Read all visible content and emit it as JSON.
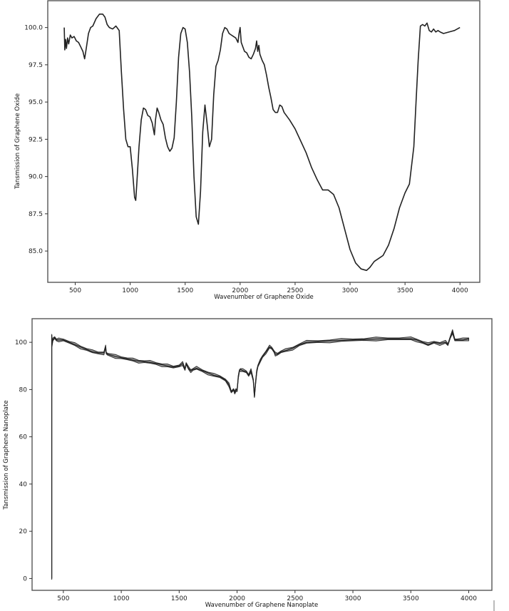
{
  "chart_data": [
    {
      "type": "line",
      "title": "",
      "xlabel": "Wavenumber of Graphene Oxide",
      "ylabel": "Tansmission of Graphene Oxide",
      "xlim": [
        250,
        4180
      ],
      "ylim": [
        82.9,
        101.8
      ],
      "grid": false,
      "legend": null,
      "xticks": [
        500,
        1000,
        1500,
        2000,
        2500,
        3000,
        3500,
        4000
      ],
      "yticks": [
        85.0,
        87.5,
        90.0,
        92.5,
        95.0,
        97.5,
        100.0
      ],
      "ytick_labels": [
        "85.0",
        "87.5",
        "90.0",
        "92.5",
        "95.0",
        "97.5",
        "100.0"
      ],
      "series": [
        {
          "name": "Graphene Oxide",
          "x": [
            400,
            405,
            412,
            420,
            430,
            440,
            455,
            470,
            490,
            510,
            530,
            550,
            570,
            585,
            600,
            620,
            640,
            660,
            690,
            720,
            750,
            770,
            790,
            810,
            840,
            870,
            900,
            920,
            940,
            960,
            980,
            1000,
            1020,
            1040,
            1050,
            1060,
            1080,
            1100,
            1120,
            1140,
            1160,
            1180,
            1200,
            1220,
            1230,
            1245,
            1260,
            1280,
            1300,
            1320,
            1340,
            1360,
            1380,
            1400,
            1420,
            1440,
            1460,
            1480,
            1500,
            1520,
            1540,
            1560,
            1580,
            1600,
            1620,
            1640,
            1660,
            1680,
            1700,
            1720,
            1740,
            1760,
            1780,
            1800,
            1820,
            1840,
            1860,
            1880,
            1900,
            1920,
            1940,
            1960,
            1980,
            1990,
            2000,
            2010,
            2020,
            2040,
            2060,
            2080,
            2100,
            2120,
            2140,
            2150,
            2160,
            2170,
            2180,
            2200,
            2220,
            2240,
            2260,
            2280,
            2300,
            2320,
            2340,
            2360,
            2380,
            2400,
            2450,
            2500,
            2550,
            2600,
            2650,
            2700,
            2750,
            2800,
            2850,
            2900,
            2950,
            3000,
            3050,
            3100,
            3150,
            3180,
            3220,
            3260,
            3300,
            3350,
            3400,
            3450,
            3500,
            3540,
            3580,
            3600,
            3620,
            3640,
            3660,
            3680,
            3700,
            3720,
            3740,
            3760,
            3780,
            3800,
            3820,
            3850,
            3900,
            3950,
            4000
          ],
          "y": [
            100.0,
            98.5,
            99.2,
            98.6,
            99.3,
            98.9,
            99.5,
            99.3,
            99.4,
            99.1,
            99.0,
            98.7,
            98.4,
            97.9,
            98.6,
            99.6,
            100.0,
            100.1,
            100.6,
            100.9,
            100.9,
            100.7,
            100.2,
            100.0,
            99.9,
            100.1,
            99.8,
            97.0,
            94.5,
            92.5,
            92.0,
            92.0,
            90.5,
            88.6,
            88.4,
            89.5,
            92.0,
            93.8,
            94.6,
            94.5,
            94.1,
            94.0,
            93.6,
            92.8,
            93.8,
            94.6,
            94.3,
            93.8,
            93.5,
            92.6,
            92.0,
            91.7,
            91.9,
            92.6,
            95.0,
            98.0,
            99.6,
            100.0,
            99.9,
            99.0,
            97.0,
            94.0,
            90.0,
            87.3,
            86.8,
            89.0,
            93.0,
            94.8,
            93.5,
            92.0,
            92.5,
            95.5,
            97.4,
            97.8,
            98.5,
            99.6,
            100.0,
            99.9,
            99.6,
            99.5,
            99.4,
            99.3,
            99.0,
            99.6,
            100.0,
            99.0,
            98.8,
            98.4,
            98.3,
            98.0,
            97.9,
            98.2,
            98.6,
            99.1,
            98.4,
            98.8,
            98.2,
            97.8,
            97.5,
            96.8,
            96.0,
            95.3,
            94.5,
            94.3,
            94.3,
            94.8,
            94.7,
            94.3,
            93.8,
            93.2,
            92.4,
            91.6,
            90.6,
            89.8,
            89.1,
            89.1,
            88.8,
            87.9,
            86.5,
            85.1,
            84.2,
            83.8,
            83.7,
            83.9,
            84.3,
            84.5,
            84.7,
            85.4,
            86.5,
            87.9,
            88.9,
            89.5,
            92.0,
            95.0,
            97.8,
            100.1,
            100.2,
            100.1,
            100.3,
            99.8,
            99.7,
            99.9,
            99.7,
            99.8,
            99.7,
            99.6,
            99.7,
            99.8,
            100.0
          ]
        }
      ]
    },
    {
      "type": "area",
      "title": "",
      "xlabel": "Wavenumber of Graphene Nanoplate",
      "ylabel": "Tansmission of Graphene Nanoplate",
      "xlim": [
        230,
        4200
      ],
      "ylim": [
        -5,
        110
      ],
      "grid": false,
      "legend": null,
      "xticks": [
        500,
        1000,
        1500,
        2000,
        2500,
        3000,
        3500,
        4000
      ],
      "yticks": [
        0,
        20,
        40,
        60,
        80,
        100
      ],
      "ytick_labels": [
        "0",
        "20",
        "40",
        "60",
        "80",
        "100"
      ],
      "series": [
        {
          "name": "Graphene Nanoplate",
          "x": [
            400,
            400,
            402,
            410,
            425,
            440,
            460,
            500,
            550,
            600,
            650,
            700,
            750,
            800,
            850,
            865,
            870,
            880,
            950,
            1000,
            1050,
            1100,
            1150,
            1200,
            1250,
            1300,
            1350,
            1400,
            1450,
            1500,
            1530,
            1550,
            1560,
            1580,
            1600,
            1620,
            1650,
            1700,
            1750,
            1800,
            1850,
            1900,
            1930,
            1950,
            1970,
            1980,
            1990,
            2000,
            2010,
            2020,
            2030,
            2050,
            2080,
            2100,
            2120,
            2140,
            2150,
            2160,
            2170,
            2180,
            2200,
            2220,
            2250,
            2280,
            2300,
            2320,
            2330,
            2350,
            2380,
            2420,
            2480,
            2540,
            2600,
            2700,
            2800,
            2900,
            3000,
            3100,
            3200,
            3300,
            3400,
            3500,
            3550,
            3600,
            3650,
            3700,
            3750,
            3800,
            3820,
            3840,
            3860,
            3880,
            3900,
            3950,
            4000
          ],
          "y": [
            0,
            103,
            99,
            101,
            102,
            101,
            101,
            101,
            100,
            99,
            98,
            97,
            96,
            95.5,
            95.5,
            98,
            95.5,
            95,
            94,
            93.5,
            93,
            92.5,
            92,
            91.8,
            91.5,
            91,
            90.5,
            90,
            89.5,
            90,
            91,
            88.5,
            91,
            89,
            88,
            88.5,
            89,
            88,
            87,
            86,
            85.5,
            84,
            82,
            79,
            80,
            78.5,
            80,
            79.5,
            85,
            88,
            88.5,
            88,
            87.5,
            86,
            88,
            84,
            77,
            83,
            88,
            90,
            92,
            94,
            96,
            98,
            97.5,
            96,
            95,
            95,
            96,
            96.5,
            97.5,
            99,
            100,
            100.3,
            100.6,
            100.8,
            101,
            101.2,
            101.4,
            101.5,
            101.5,
            101.5,
            101,
            100,
            99,
            100,
            99.5,
            100,
            99,
            102,
            104.5,
            101,
            101,
            101,
            101.5
          ]
        }
      ]
    }
  ]
}
